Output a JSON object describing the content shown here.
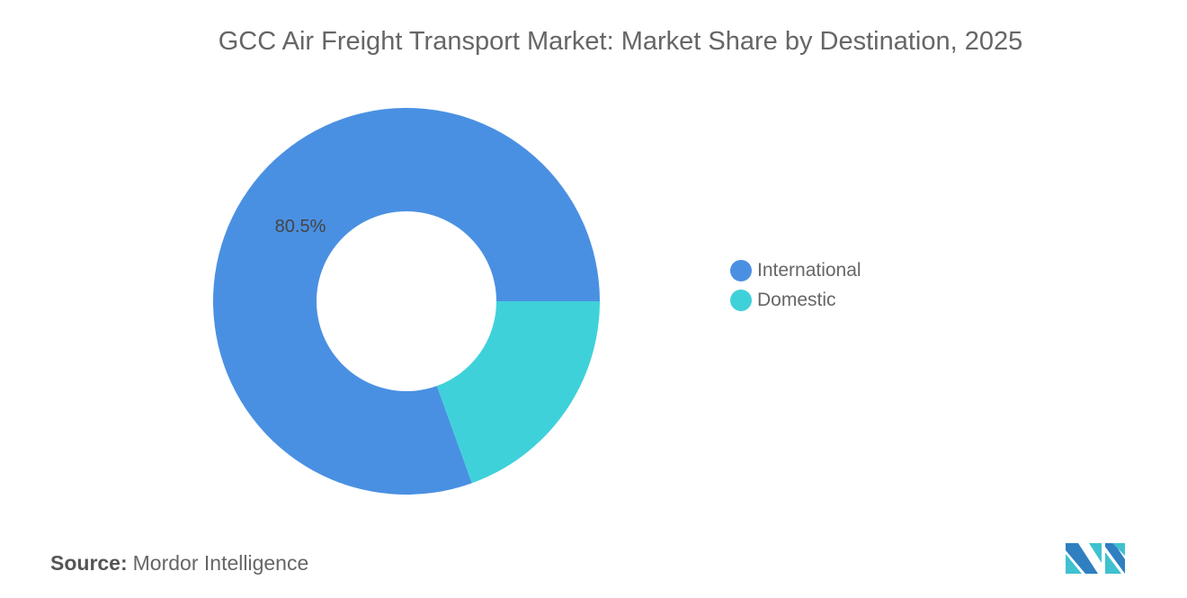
{
  "chart_data": {
    "type": "pie",
    "variant": "donut",
    "title": "GCC Air Freight Transport Market: Market Share by Destination, 2025",
    "categories": [
      "International",
      "Domestic"
    ],
    "values": [
      80.5,
      19.5
    ],
    "unit": "%",
    "colors": [
      "#4a90e2",
      "#3fd1da"
    ],
    "data_labels": [
      "80.5%",
      ""
    ],
    "legend_position": "right"
  },
  "source": {
    "label": "Source:",
    "value": "Mordor Intelligence"
  },
  "logo": {
    "colors": [
      "#2f7fc1",
      "#3fc1d0"
    ]
  }
}
